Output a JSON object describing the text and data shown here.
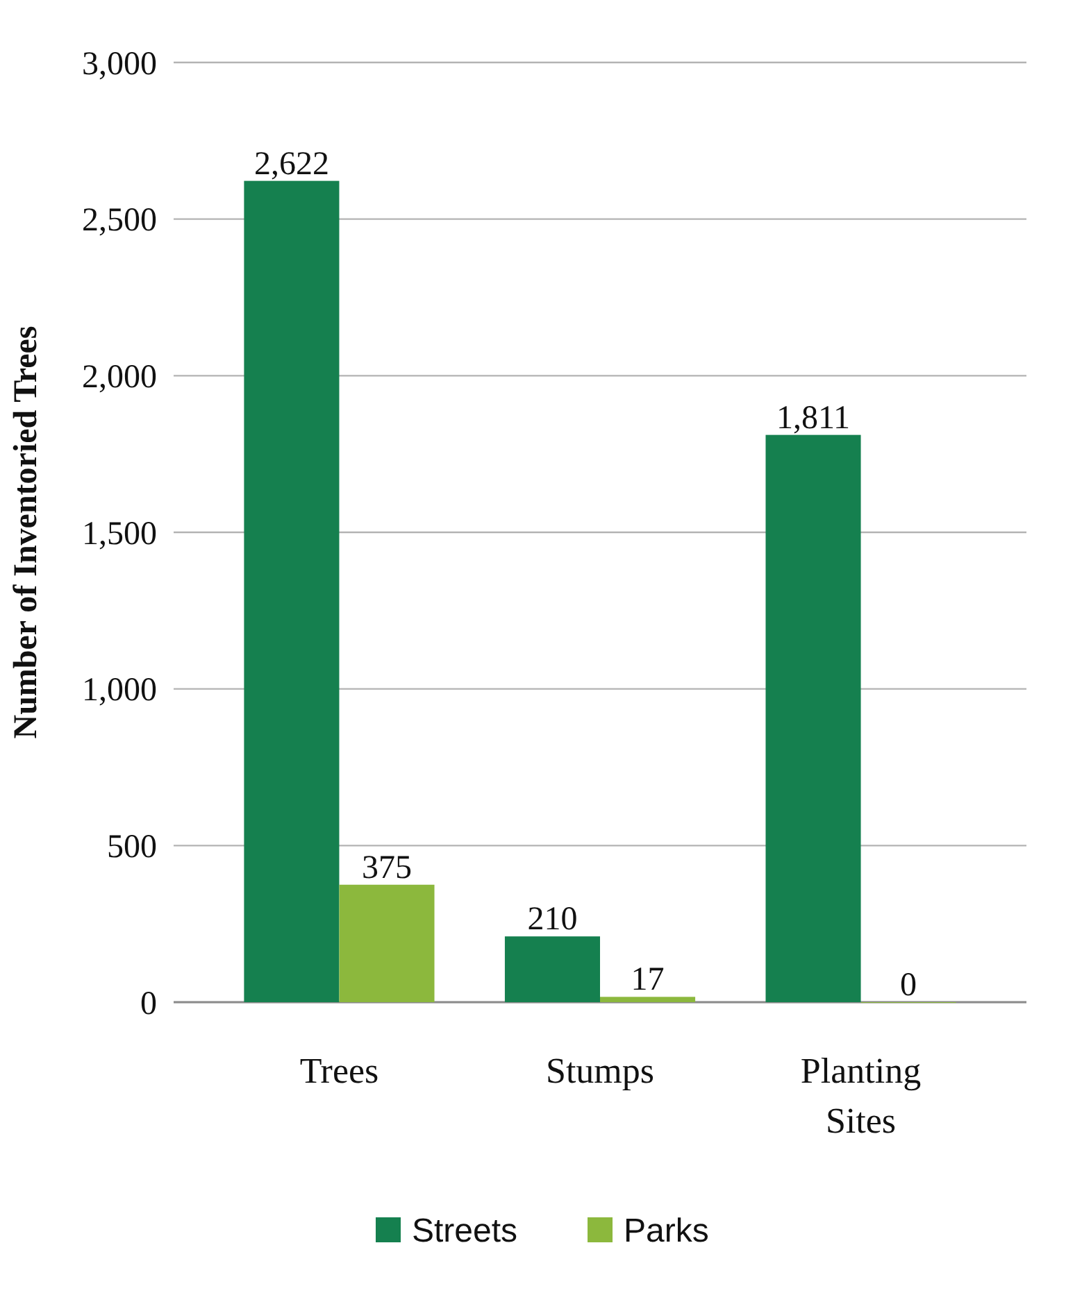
{
  "chart_data": {
    "type": "bar",
    "ylabel": "Number of Inventoried Trees",
    "categories": [
      "Trees",
      "Stumps",
      "Planting Sites"
    ],
    "series": [
      {
        "name": "Streets",
        "color": "#15804f",
        "values": [
          2622,
          210,
          1811
        ],
        "value_labels": [
          "2,622",
          "210",
          "1,811"
        ]
      },
      {
        "name": "Parks",
        "color": "#8cb83d",
        "values": [
          375,
          17,
          0
        ],
        "value_labels": [
          "375",
          "17",
          "0"
        ]
      }
    ],
    "ylim": [
      0,
      3000
    ],
    "yticks": [
      {
        "value": 0,
        "label": "0"
      },
      {
        "value": 500,
        "label": "500"
      },
      {
        "value": 1000,
        "label": "1,000"
      },
      {
        "value": 1500,
        "label": "1,500"
      },
      {
        "value": 2000,
        "label": "2,000"
      },
      {
        "value": 2500,
        "label": "2,500"
      },
      {
        "value": 3000,
        "label": "3,000"
      }
    ],
    "grid": "y",
    "legend": "bottom"
  }
}
